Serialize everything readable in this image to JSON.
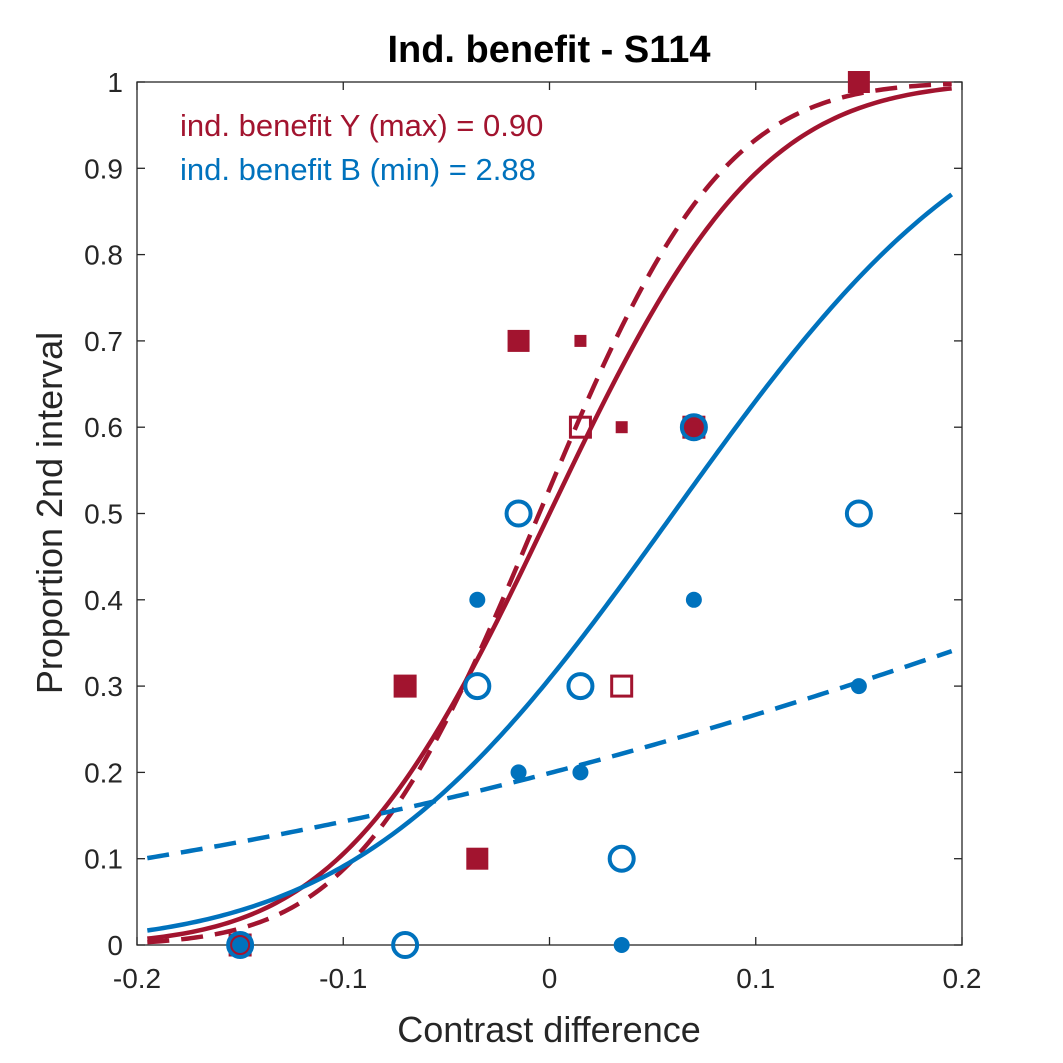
{
  "chart_data": {
    "type": "scatter",
    "title": "Ind. benefit - S114",
    "xlabel": "Contrast difference",
    "ylabel": "Proportion 2nd interval",
    "xlim": [
      -0.2,
      0.2
    ],
    "ylim": [
      0,
      1
    ],
    "xticks": [
      -0.2,
      -0.1,
      0,
      0.1,
      0.2
    ],
    "xtick_labels": [
      "-0.2",
      "-0.1",
      "0",
      "0.1",
      "0.2"
    ],
    "yticks": [
      0,
      0.1,
      0.2,
      0.3,
      0.4,
      0.5,
      0.6,
      0.7,
      0.8,
      0.9,
      1
    ],
    "ytick_labels": [
      "0",
      "0.1",
      "0.2",
      "0.3",
      "0.4",
      "0.5",
      "0.6",
      "0.7",
      "0.8",
      "0.9",
      "1"
    ],
    "grid": false,
    "colors": {
      "red": "#A2142F",
      "blue": "#0072BD"
    },
    "annotations": [
      {
        "text": "ind. benefit Y (max) = 0.90",
        "color": "#A2142F"
      },
      {
        "text": "ind. benefit B (min) = 2.88",
        "color": "#0072BD"
      }
    ],
    "curves": [
      {
        "color": "#A2142F",
        "style": "solid",
        "mu": 0.0,
        "sigma": 0.08
      },
      {
        "color": "#A2142F",
        "style": "dashed",
        "mu": -0.005,
        "sigma": 0.07
      },
      {
        "color": "#0072BD",
        "style": "solid",
        "mu": 0.06,
        "sigma": 0.12
      },
      {
        "color": "#0072BD",
        "style": "dashed",
        "mu": 0.38,
        "sigma": 0.45
      }
    ],
    "series": [
      {
        "marker": "filled-square-large",
        "color": "#A2142F",
        "points": [
          [
            -0.15,
            0
          ],
          [
            -0.07,
            0.3
          ],
          [
            -0.035,
            0.1
          ],
          [
            -0.015,
            0.7
          ],
          [
            0.07,
            0.6
          ],
          [
            0.15,
            1
          ]
        ]
      },
      {
        "marker": "filled-square-small",
        "color": "#A2142F",
        "points": [
          [
            -0.15,
            0
          ],
          [
            -0.07,
            0.3
          ],
          [
            0.015,
            0.7
          ],
          [
            0.035,
            0.6
          ],
          [
            0.07,
            0.6
          ]
        ]
      },
      {
        "marker": "open-square",
        "color": "#A2142F",
        "points": [
          [
            -0.15,
            0
          ],
          [
            -0.07,
            0.3
          ],
          [
            0.015,
            0.6
          ],
          [
            0.035,
            0.3
          ],
          [
            0.07,
            0.6
          ]
        ]
      },
      {
        "marker": "open-circle",
        "color": "#0072BD",
        "points": [
          [
            -0.15,
            0
          ],
          [
            -0.07,
            0
          ],
          [
            -0.035,
            0.3
          ],
          [
            -0.015,
            0.5
          ],
          [
            0.015,
            0.3
          ],
          [
            0.035,
            0.1
          ],
          [
            0.07,
            0.6
          ],
          [
            0.15,
            0.5
          ]
        ]
      },
      {
        "marker": "filled-dot",
        "color": "#0072BD",
        "points": [
          [
            -0.15,
            0
          ],
          [
            -0.035,
            0.4
          ],
          [
            -0.015,
            0.2
          ],
          [
            0.015,
            0.2
          ],
          [
            0.035,
            0
          ],
          [
            0.07,
            0.4
          ],
          [
            0.15,
            0.3
          ]
        ]
      }
    ]
  }
}
